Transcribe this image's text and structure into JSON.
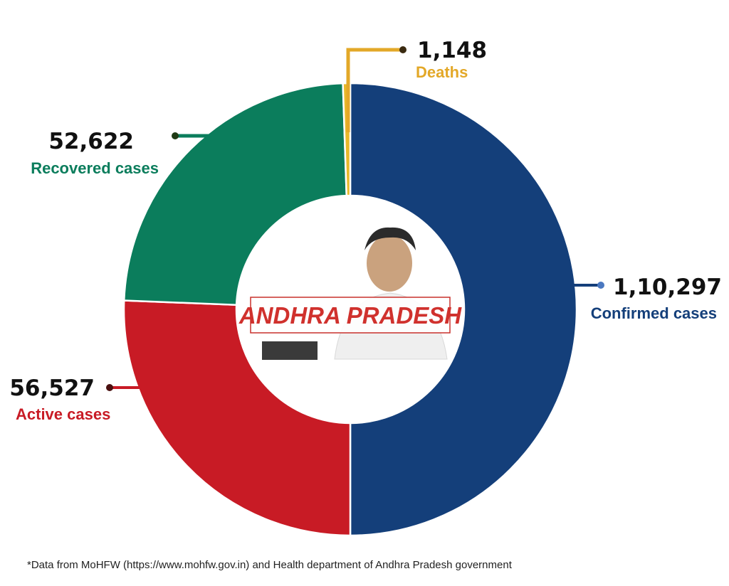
{
  "chart_data": {
    "type": "donut",
    "center_label": "ANDHRA PRADESH",
    "total": {
      "label": "Confirmed cases",
      "value": 110297,
      "display": "1,10,297",
      "color": "#143f7a"
    },
    "slices": [
      {
        "label": "Deaths",
        "value": 1148,
        "display": "1,148",
        "color": "#e8b92a"
      },
      {
        "label": "Active cases",
        "value": 56527,
        "display": "56,527",
        "color": "#c81b25"
      },
      {
        "label": "Recovered cases",
        "value": 52622,
        "display": "52,622",
        "color": "#0b7d5c"
      }
    ],
    "colors": {
      "label_deaths": "#e3a828",
      "label_recovered": "#0b7d5c",
      "label_active": "#c81b25",
      "label_confirmed": "#143f7a"
    }
  },
  "footnote": "*Data from MoHFW (https://www.mohfw.gov.in) and Health department of Andhra Pradesh government"
}
